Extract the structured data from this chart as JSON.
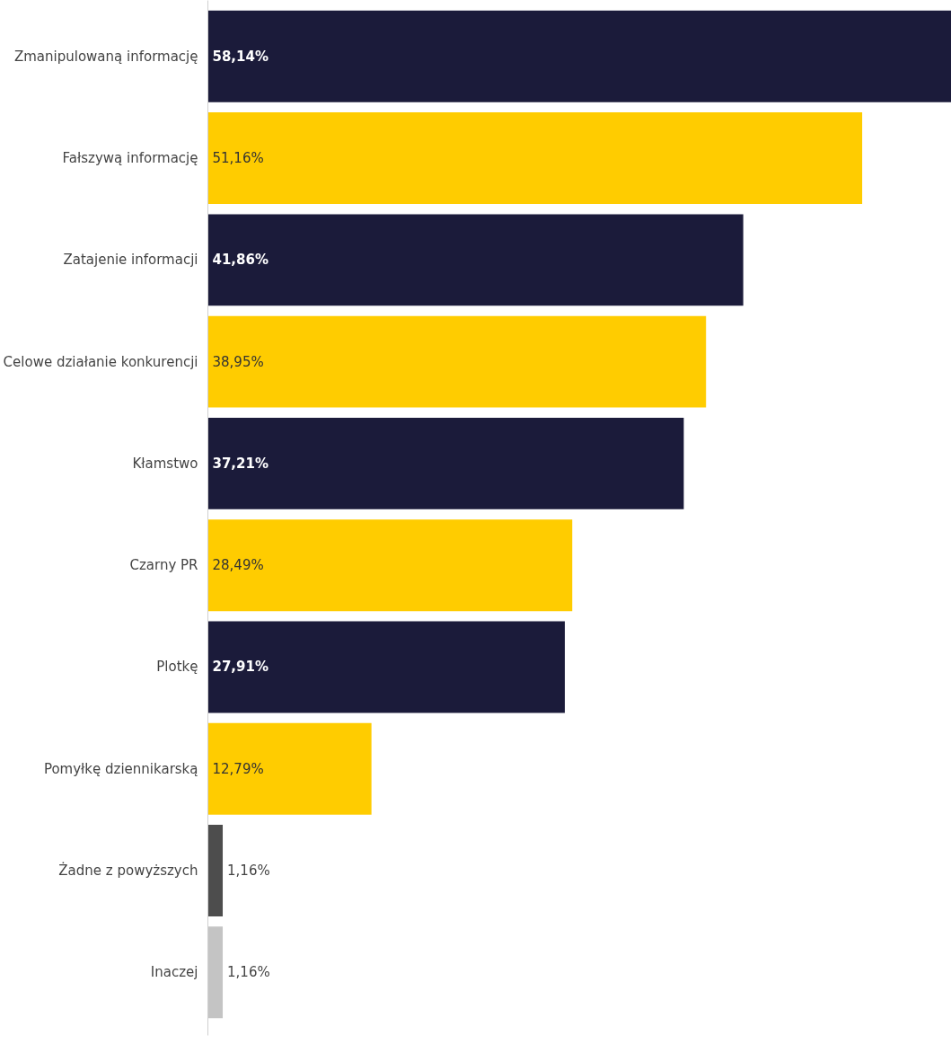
{
  "chart_data": {
    "type": "bar",
    "orientation": "horizontal",
    "categories": [
      "Zmanipulowaną informację",
      "Fałszywą informację",
      "Zatajenie informacji",
      "Celowe działanie konkurencji",
      "Kłamstwo",
      "Czarny PR",
      "Plotkę",
      "Pomyłkę dziennikarską",
      "Żadne z powyższych",
      "Inaczej"
    ],
    "values": [
      58.14,
      51.16,
      41.86,
      38.95,
      37.21,
      28.49,
      27.91,
      12.79,
      1.16,
      1.16
    ],
    "colors": [
      "#1b1b3a",
      "#ffcc00",
      "#1b1b3a",
      "#ffcc00",
      "#1b1b3a",
      "#ffcc00",
      "#1b1b3a",
      "#ffcc00",
      "#4d4d4d",
      "#c4c4c4"
    ],
    "value_labels": [
      "58,14%",
      "51,16%",
      "41,86%",
      "38,95%",
      "37,21%",
      "28,49%",
      "27,91%",
      "12,79%",
      "1,16%",
      "1,16%"
    ],
    "grid": false
  }
}
